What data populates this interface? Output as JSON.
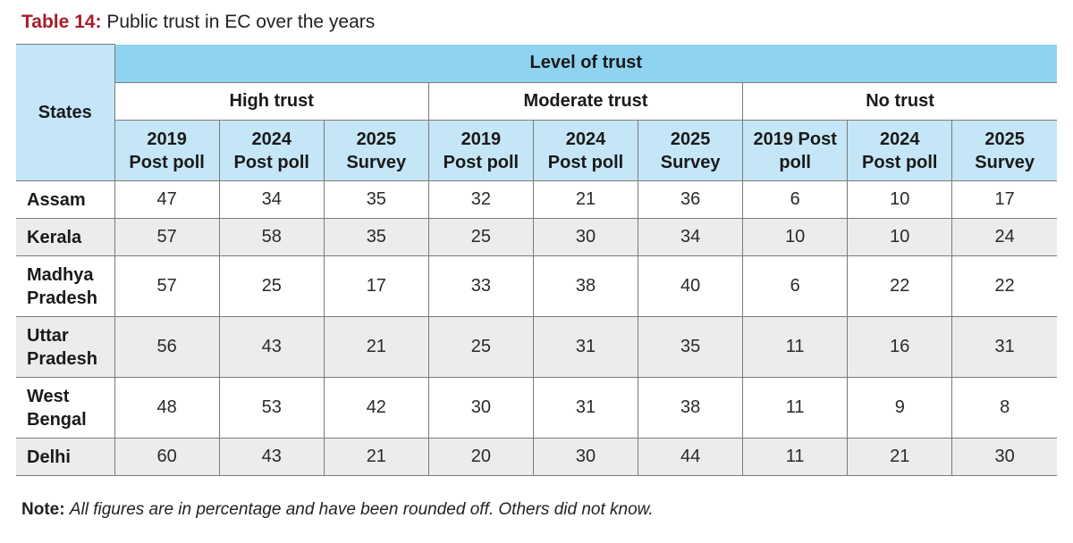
{
  "title": {
    "label": "Table 14:",
    "text": "Public trust in EC over the years"
  },
  "table": {
    "states_header": "States",
    "level_header": "Level of trust",
    "groups": [
      "High trust",
      "Moderate trust",
      "No trust"
    ],
    "subheaders": [
      [
        "2019",
        "Post poll"
      ],
      [
        "2024",
        "Post poll"
      ],
      [
        "2025",
        "Survey"
      ],
      [
        "2019",
        "Post poll"
      ],
      [
        "2024",
        "Post poll"
      ],
      [
        "2025",
        "Survey"
      ],
      [
        "2019 Post",
        "poll"
      ],
      [
        "2024",
        "Post poll"
      ],
      [
        "2025",
        "Survey"
      ]
    ],
    "rows": [
      {
        "state": [
          "Assam"
        ],
        "values": [
          "47",
          "34",
          "35",
          "32",
          "21",
          "36",
          "6",
          "10",
          "17"
        ]
      },
      {
        "state": [
          "Kerala"
        ],
        "values": [
          "57",
          "58",
          "35",
          "25",
          "30",
          "34",
          "10",
          "10",
          "24"
        ]
      },
      {
        "state": [
          "Madhya",
          "Pradesh"
        ],
        "values": [
          "57",
          "25",
          "17",
          "33",
          "38",
          "40",
          "6",
          "22",
          "22"
        ]
      },
      {
        "state": [
          "Uttar",
          "Pradesh"
        ],
        "values": [
          "56",
          "43",
          "21",
          "25",
          "31",
          "35",
          "11",
          "16",
          "31"
        ]
      },
      {
        "state": [
          "West",
          "Bengal"
        ],
        "values": [
          "48",
          "53",
          "42",
          "30",
          "31",
          "38",
          "11",
          "9",
          "8"
        ]
      },
      {
        "state": [
          "Delhi"
        ],
        "values": [
          "60",
          "43",
          "21",
          "20",
          "30",
          "44",
          "11",
          "21",
          "30"
        ]
      }
    ]
  },
  "note": {
    "label": "Note:",
    "text": "All figures are in percentage and have been rounded off. Others did not know."
  }
}
